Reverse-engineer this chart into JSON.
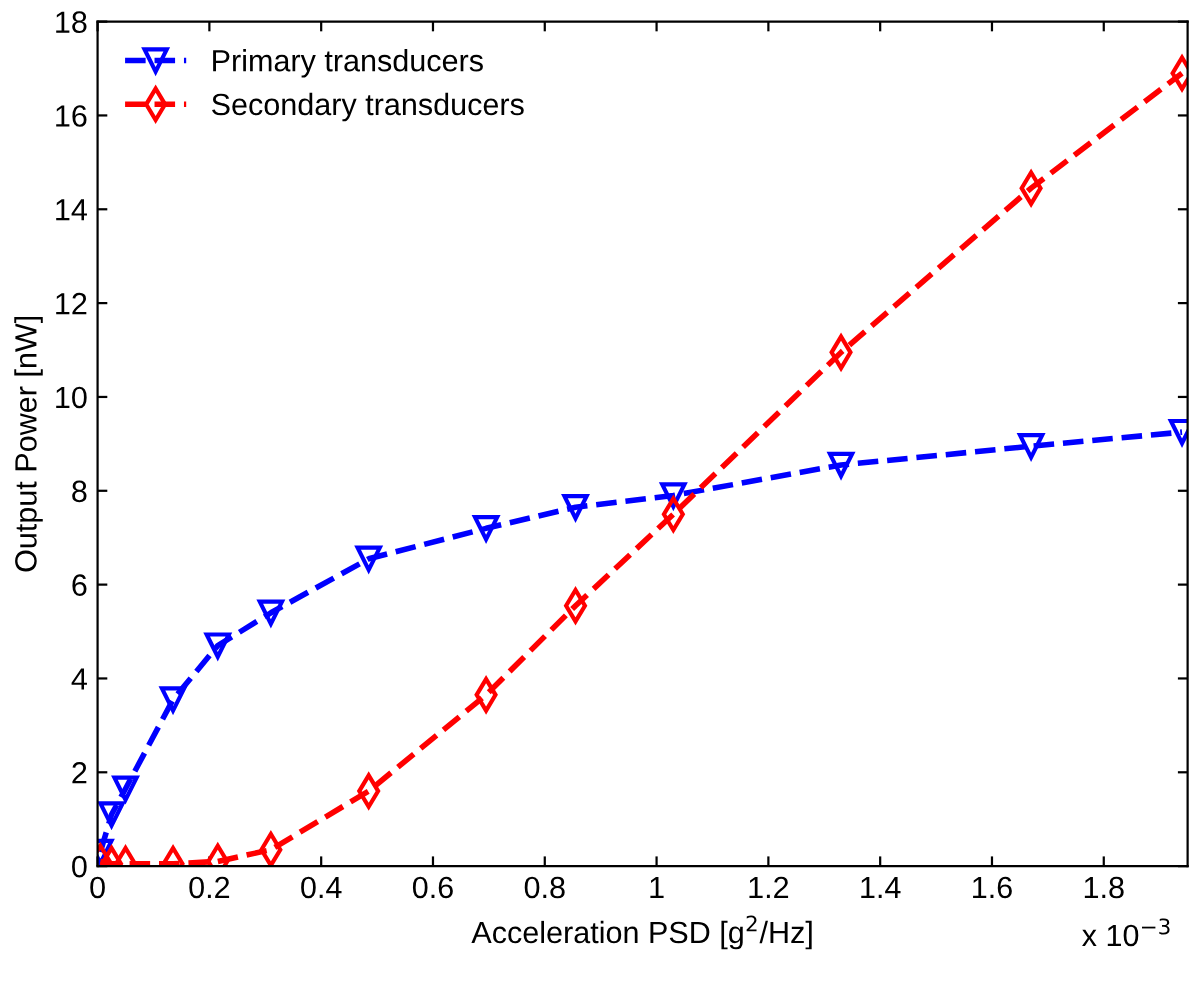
{
  "chart_data": {
    "type": "line",
    "xlabel": "Acceleration PSD [g$^{2}$/Hz]",
    "ylabel": "Output Power [nW]",
    "annotations": [
      "x 10$^{−3}$"
    ],
    "xlim": [
      0,
      1.95
    ],
    "xticks": [
      0,
      0.2,
      0.4,
      0.6,
      0.8,
      1,
      1.2,
      1.4,
      1.6,
      1.8
    ],
    "ylim": [
      0,
      18
    ],
    "yticks": [
      0,
      2,
      4,
      6,
      8,
      10,
      12,
      14,
      16,
      18
    ],
    "grid": false,
    "legend": "top left",
    "line_style": "dashed",
    "series": [
      {
        "name": "Primary transducers",
        "color": "#0000ff",
        "marker": "triangle",
        "x": [
          0.005,
          0.025,
          0.05,
          0.135,
          0.215,
          0.31,
          0.485,
          0.695,
          0.855,
          1.03,
          1.33,
          1.67,
          1.94
        ],
        "values": [
          0.3,
          1.1,
          1.65,
          3.55,
          4.7,
          5.4,
          6.55,
          7.2,
          7.65,
          7.9,
          8.55,
          8.95,
          9.25
        ]
      },
      {
        "name": "Secondary transducers",
        "color": "#ff0000",
        "marker": "diamond",
        "x": [
          0.005,
          0.025,
          0.05,
          0.135,
          0.215,
          0.31,
          0.485,
          0.695,
          0.855,
          1.03,
          1.33,
          1.67,
          1.94
        ],
        "values": [
          0.1,
          0.05,
          0.05,
          0.05,
          0.1,
          0.35,
          1.6,
          3.65,
          5.55,
          7.5,
          10.95,
          14.45,
          16.9
        ]
      }
    ]
  }
}
